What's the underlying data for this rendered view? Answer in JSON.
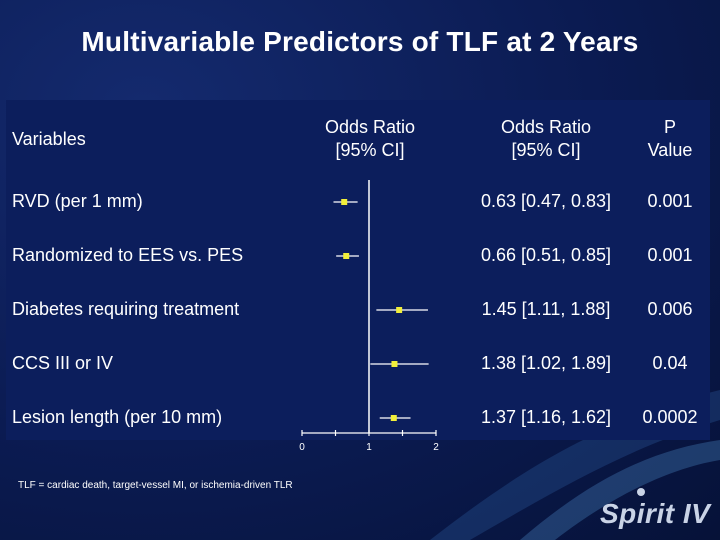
{
  "slide": {
    "title": "Multivariable Predictors of TLF at 2 Years",
    "footnote": "TLF = cardiac death, target-vessel MI, or ischemia-driven TLR",
    "logo": "Spirit IV"
  },
  "table": {
    "headers": {
      "variables": "Variables",
      "plot_col_line1": "Odds Ratio",
      "plot_col_line2": "[95% CI]",
      "or_col_line1": "Odds Ratio",
      "or_col_line2": "[95% CI]",
      "p_col_line1": "P",
      "p_col_line2": "Value"
    },
    "rows": [
      {
        "variable": "RVD (per 1 mm)",
        "or_ci": "0.63 [0.47, 0.83]",
        "p": "0.001"
      },
      {
        "variable": "Randomized to EES vs. PES",
        "or_ci": "0.66 [0.51, 0.85]",
        "p": "0.001"
      },
      {
        "variable": "Diabetes requiring treatment",
        "or_ci": "1.45 [1.11, 1.88]",
        "p": "0.006"
      },
      {
        "variable": "CCS III or IV",
        "or_ci": "1.38 [1.02, 1.89]",
        "p": "0.04"
      },
      {
        "variable": "Lesion length (per 10 mm)",
        "or_ci": "1.37 [1.16, 1.62]",
        "p": "0.0002"
      }
    ]
  },
  "chart_data": {
    "type": "forest",
    "categories": [
      "RVD (per 1 mm)",
      "Randomized to EES vs. PES",
      "Diabetes requiring treatment",
      "CCS III or IV",
      "Lesion length (per 10 mm)"
    ],
    "estimates": [
      0.63,
      0.66,
      1.45,
      1.38,
      1.37
    ],
    "ci_lower": [
      0.47,
      0.51,
      1.11,
      1.02,
      1.16
    ],
    "ci_upper": [
      0.83,
      0.85,
      1.88,
      1.89,
      1.62
    ],
    "reference_line": 1,
    "xlim": [
      0,
      2
    ],
    "xticks": [
      0,
      1,
      2
    ],
    "xtick_labels": [
      "0",
      "1",
      "2"
    ],
    "minor_ticks": [
      0.5,
      1.5
    ],
    "marker_color": "#f2ef3a",
    "line_color": "#ffffff"
  }
}
